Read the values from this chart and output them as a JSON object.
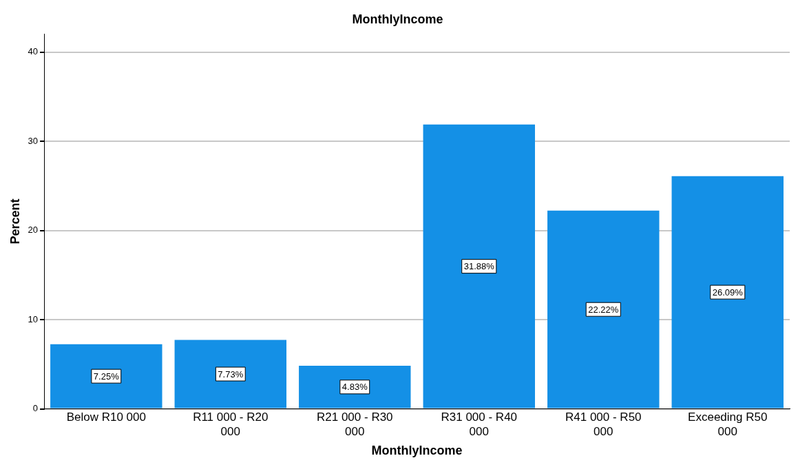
{
  "chart_data": {
    "type": "bar",
    "title": "MonthlyIncome",
    "xlabel": "MonthlyIncome",
    "ylabel": "Percent",
    "categories": [
      "Below R10 000",
      "R11 000 - R20 000",
      "R21 000 - R30 000",
      "R31 000 - R40 000",
      "R41 000 - R50 000",
      "Exceeding R50 000"
    ],
    "values": [
      7.25,
      7.73,
      4.83,
      31.88,
      22.22,
      26.09
    ],
    "value_labels": [
      "7.25%",
      "7.73%",
      "4.83%",
      "31.88%",
      "22.22%",
      "26.09%"
    ],
    "color": "#1490e6",
    "ylim": [
      0,
      42
    ],
    "yticks": [
      0,
      10,
      20,
      30,
      40
    ],
    "grid": "y",
    "legend": false
  }
}
